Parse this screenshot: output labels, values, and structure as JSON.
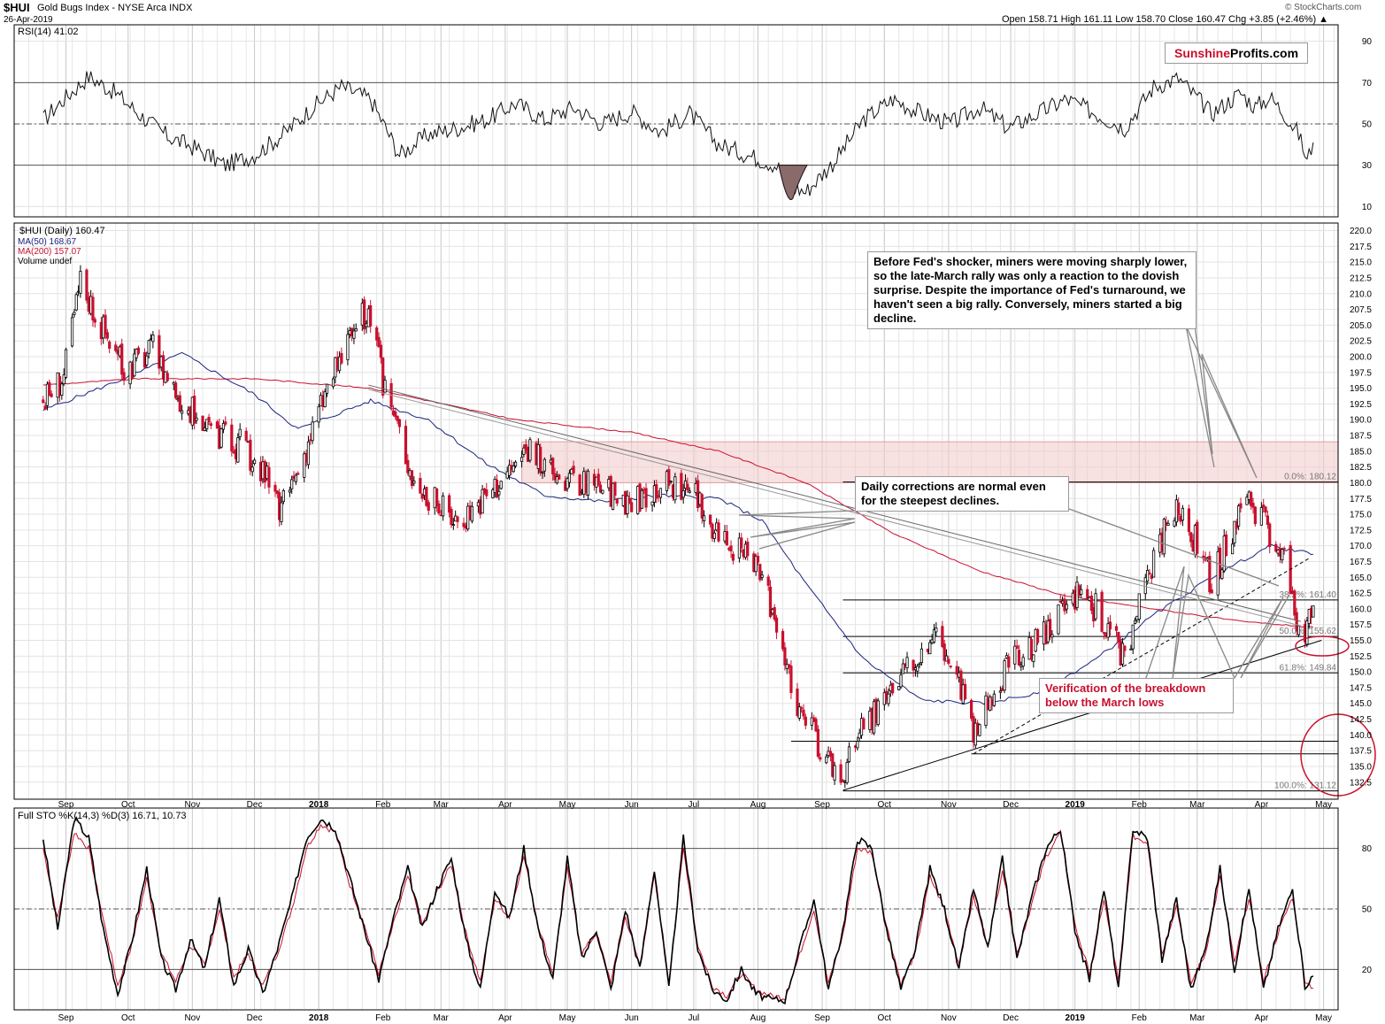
{
  "header": {
    "symbol": "$HUI",
    "name": "Gold Bugs Index - NYSE Arca INDX",
    "date": "26-Apr-2019",
    "quote": "Open 158.71  High 161.11  Low 158.70  Close 160.47  Chg +3.85 (+2.46%) ▲",
    "copyright": "© StockCharts.com"
  },
  "brand": {
    "part1": "Sunshine",
    "part2": "Profits.com"
  },
  "rsi_label": "RSI(14) 41.02",
  "price_legend": [
    "$HUI (Daily) 160.47",
    "MA(50) 168.67",
    "MA(200) 157.07",
    "Volume undef"
  ],
  "sto_label": "Full STO %K(14,3) %D(3) 16.71, 10.73",
  "annotations": {
    "fed_note": "Before Fed's shocker, miners were moving sharply lower, so the late-March rally was only a reaction to the dovish surprise. Despite the importance of Fed's turnaround, we haven't seen a big rally. Conversely, miners started a big decline.",
    "corrections_note": "Daily corrections are normal even for the steepest declines.",
    "verification_note": "Verification of the breakdown below the March lows"
  },
  "colors": {
    "up": "#000000",
    "down": "#c8102e",
    "ma50": "#1a237e",
    "ma200": "#c8102e",
    "zone": "#f3c9c9",
    "brand_red": "#c8102e"
  },
  "chart_data": [
    {
      "type": "line",
      "title": "RSI(14) 41.02",
      "y_ticks": [
        10,
        30,
        50,
        70,
        90
      ],
      "ylim": [
        5,
        98
      ],
      "x": [
        "2017-08-21",
        "2017-08-31",
        "2017-09-12",
        "2017-09-25",
        "2017-10-06",
        "2017-10-20",
        "2017-11-03",
        "2017-11-17",
        "2017-12-01",
        "2017-12-15",
        "2017-12-29",
        "2018-01-12",
        "2018-01-26",
        "2018-02-09",
        "2018-02-23",
        "2018-03-09",
        "2018-03-23",
        "2018-04-06",
        "2018-04-20",
        "2018-05-04",
        "2018-05-18",
        "2018-06-01",
        "2018-06-15",
        "2018-06-29",
        "2018-07-13",
        "2018-07-27",
        "2018-08-10",
        "2018-08-17",
        "2018-08-24",
        "2018-09-07",
        "2018-09-21",
        "2018-10-05",
        "2018-10-19",
        "2018-11-02",
        "2018-11-16",
        "2018-11-30",
        "2018-12-14",
        "2018-12-28",
        "2019-01-11",
        "2019-01-25",
        "2019-02-08",
        "2019-02-20",
        "2019-03-08",
        "2019-03-22",
        "2019-03-29",
        "2019-04-05",
        "2019-04-12",
        "2019-04-19",
        "2019-04-23",
        "2019-04-26"
      ],
      "values": [
        52,
        62,
        73,
        65,
        55,
        44,
        38,
        30,
        35,
        45,
        58,
        68,
        62,
        35,
        45,
        48,
        52,
        60,
        52,
        58,
        50,
        56,
        46,
        55,
        40,
        35,
        30,
        20,
        17,
        32,
        52,
        62,
        55,
        50,
        58,
        48,
        55,
        62,
        55,
        48,
        68,
        72,
        55,
        65,
        58,
        63,
        55,
        45,
        32,
        41
      ]
    },
    {
      "type": "candlestick",
      "title": "$HUI (Daily) 160.47",
      "y_ticks": [
        132.5,
        135.0,
        137.5,
        140.0,
        142.5,
        145.0,
        147.5,
        150.0,
        152.5,
        155.0,
        157.5,
        160.0,
        162.5,
        165.0,
        167.5,
        170.0,
        172.5,
        175.0,
        177.5,
        180.0,
        182.5,
        185.0,
        187.5,
        190.0,
        192.5,
        195.0,
        197.5,
        200.0,
        202.5,
        205.0,
        207.5,
        210.0,
        212.5,
        215.0,
        217.5,
        220.0
      ],
      "ylim": [
        129.8,
        221.2
      ],
      "x_ticks": [
        "Sep",
        "Oct",
        "Nov",
        "Dec",
        "2018",
        "Feb",
        "Mar",
        "Apr",
        "May",
        "Jun",
        "Jul",
        "Aug",
        "Sep",
        "Oct",
        "Nov",
        "Dec",
        "2019",
        "Feb",
        "Mar",
        "Apr",
        "May"
      ],
      "series": [
        {
          "name": "$HUI (Daily) 160.47",
          "x": [
            "2017-08-21",
            "2017-08-31",
            "2017-09-08",
            "2017-09-15",
            "2017-09-29",
            "2017-10-13",
            "2017-10-27",
            "2017-11-10",
            "2017-11-24",
            "2017-12-08",
            "2017-12-13",
            "2017-12-22",
            "2018-01-05",
            "2018-01-19",
            "2018-01-25",
            "2018-02-01",
            "2018-02-09",
            "2018-02-16",
            "2018-03-01",
            "2018-03-09",
            "2018-03-23",
            "2018-04-06",
            "2018-04-13",
            "2018-04-20",
            "2018-05-04",
            "2018-05-18",
            "2018-06-01",
            "2018-06-15",
            "2018-06-29",
            "2018-07-09",
            "2018-07-20",
            "2018-08-03",
            "2018-08-10",
            "2018-08-15",
            "2018-08-17",
            "2018-08-24",
            "2018-08-31",
            "2018-09-11",
            "2018-09-21",
            "2018-10-05",
            "2018-10-12",
            "2018-10-26",
            "2018-11-09",
            "2018-11-13",
            "2018-11-23",
            "2018-12-07",
            "2018-12-21",
            "2019-01-04",
            "2019-01-11",
            "2019-01-25",
            "2019-02-08",
            "2019-02-20",
            "2019-03-01",
            "2019-03-08",
            "2019-03-15",
            "2019-03-22",
            "2019-03-27",
            "2019-04-05",
            "2019-04-12",
            "2019-04-17",
            "2019-04-23",
            "2019-04-26"
          ],
          "close": [
            193,
            197,
            212,
            207,
            198,
            201,
            193,
            188,
            186,
            180,
            175,
            182,
            195,
            205,
            207,
            196,
            188,
            180,
            176,
            174,
            178,
            183,
            186,
            182,
            180,
            179,
            177,
            180,
            179,
            174,
            170,
            165,
            158,
            152,
            146,
            142,
            138,
            133,
            142,
            146,
            150,
            156,
            146,
            139,
            148,
            153,
            157,
            163,
            160,
            152,
            168,
            177,
            170,
            164,
            170,
            176,
            177,
            172,
            168,
            159,
            156,
            160.47
          ]
        },
        {
          "name": "MA(50) 168.67",
          "x": [
            "2017-08-21",
            "2017-09-29",
            "2017-10-27",
            "2017-12-01",
            "2017-12-22",
            "2018-01-26",
            "2018-02-23",
            "2018-03-23",
            "2018-04-20",
            "2018-05-18",
            "2018-06-15",
            "2018-07-13",
            "2018-08-03",
            "2018-08-24",
            "2018-09-21",
            "2018-10-19",
            "2018-11-16",
            "2018-12-14",
            "2019-01-11",
            "2019-02-08",
            "2019-03-08",
            "2019-04-05",
            "2019-04-26"
          ],
          "values": [
            191.5,
            196.5,
            200.5,
            194,
            188.5,
            193,
            190,
            183,
            178,
            177,
            178,
            177.5,
            174,
            164,
            152,
            145.5,
            145,
            146.5,
            152,
            159,
            165,
            170,
            168.67
          ]
        },
        {
          "name": "MA(200) 157.07",
          "x": [
            "2017-08-21",
            "2017-10-06",
            "2017-12-01",
            "2018-01-26",
            "2018-04-06",
            "2018-06-01",
            "2018-07-13",
            "2018-08-24",
            "2018-10-05",
            "2018-11-16",
            "2018-12-28",
            "2019-02-08",
            "2019-03-22",
            "2019-04-26"
          ],
          "values": [
            195.5,
            196.5,
            196.5,
            195,
            190,
            188,
            185,
            180,
            172,
            166,
            162,
            160,
            158,
            157.07
          ]
        }
      ],
      "fibonacci": [
        {
          "label": "0.0%: 180.12",
          "value": 180.12
        },
        {
          "label": "38.2%: 161.40",
          "value": 161.4
        },
        {
          "label": "50.0%: 155.62",
          "value": 155.62
        },
        {
          "label": "61.8%: 149.84",
          "value": 149.84
        },
        {
          "label": "100.0%: 131.12",
          "value": 131.12
        }
      ],
      "horizontal_levels": [
        139.0,
        137.0
      ],
      "resistance_zone": [
        180.0,
        186.5
      ]
    },
    {
      "type": "line",
      "title": "Full STO %K(14,3) %D(3) 16.71, 10.73",
      "y_ticks": [
        20,
        50,
        80
      ],
      "ylim": [
        0,
        100
      ],
      "x": [
        "2017-08-21",
        "2017-08-28",
        "2017-09-05",
        "2017-09-12",
        "2017-09-19",
        "2017-09-26",
        "2017-10-03",
        "2017-10-10",
        "2017-10-17",
        "2017-10-24",
        "2017-10-31",
        "2017-11-07",
        "2017-11-14",
        "2017-11-21",
        "2017-11-28",
        "2017-12-05",
        "2017-12-12",
        "2017-12-19",
        "2017-12-26",
        "2018-01-02",
        "2018-01-09",
        "2018-01-16",
        "2018-01-23",
        "2018-01-30",
        "2018-02-06",
        "2018-02-13",
        "2018-02-20",
        "2018-02-27",
        "2018-03-06",
        "2018-03-13",
        "2018-03-20",
        "2018-03-27",
        "2018-04-03",
        "2018-04-10",
        "2018-04-17",
        "2018-04-24",
        "2018-05-01",
        "2018-05-08",
        "2018-05-15",
        "2018-05-22",
        "2018-05-29",
        "2018-06-05",
        "2018-06-12",
        "2018-06-19",
        "2018-06-26",
        "2018-07-03",
        "2018-07-10",
        "2018-07-17",
        "2018-07-24",
        "2018-07-31",
        "2018-08-07",
        "2018-08-14",
        "2018-08-21",
        "2018-08-28",
        "2018-09-04",
        "2018-09-11",
        "2018-09-18",
        "2018-09-25",
        "2018-10-02",
        "2018-10-09",
        "2018-10-16",
        "2018-10-23",
        "2018-10-30",
        "2018-11-06",
        "2018-11-13",
        "2018-11-20",
        "2018-11-27",
        "2018-12-04",
        "2018-12-11",
        "2018-12-18",
        "2018-12-25",
        "2019-01-01",
        "2019-01-08",
        "2019-01-15",
        "2019-01-22",
        "2019-01-29",
        "2019-02-05",
        "2019-02-12",
        "2019-02-19",
        "2019-02-26",
        "2019-03-05",
        "2019-03-12",
        "2019-03-19",
        "2019-03-26",
        "2019-04-02",
        "2019-04-09",
        "2019-04-16",
        "2019-04-22",
        "2019-04-26"
      ],
      "series": [
        {
          "name": "%K",
          "values": [
            85,
            40,
            95,
            85,
            40,
            8,
            35,
            70,
            25,
            10,
            35,
            20,
            55,
            12,
            30,
            8,
            30,
            55,
            85,
            95,
            90,
            65,
            40,
            15,
            45,
            70,
            40,
            60,
            75,
            35,
            10,
            60,
            45,
            80,
            40,
            15,
            75,
            25,
            40,
            10,
            50,
            20,
            70,
            10,
            85,
            30,
            10,
            5,
            20,
            8,
            5,
            5,
            30,
            55,
            10,
            40,
            85,
            80,
            40,
            10,
            30,
            70,
            50,
            20,
            60,
            30,
            75,
            25,
            55,
            80,
            90,
            40,
            15,
            60,
            10,
            90,
            85,
            25,
            55,
            10,
            30,
            70,
            20,
            60,
            10,
            40,
            60,
            12,
            16.71
          ]
        },
        {
          "name": "%D",
          "values": [
            80,
            45,
            88,
            80,
            45,
            12,
            33,
            65,
            28,
            14,
            32,
            22,
            50,
            16,
            28,
            12,
            28,
            50,
            80,
            92,
            88,
            62,
            42,
            18,
            42,
            66,
            42,
            58,
            72,
            38,
            14,
            55,
            46,
            76,
            42,
            18,
            70,
            28,
            38,
            14,
            46,
            22,
            66,
            14,
            80,
            32,
            12,
            7,
            18,
            10,
            7,
            6,
            27,
            50,
            13,
            37,
            80,
            78,
            42,
            13,
            28,
            66,
            50,
            23,
            56,
            32,
            70,
            28,
            52,
            76,
            88,
            42,
            18,
            55,
            14,
            86,
            83,
            28,
            52,
            13,
            28,
            66,
            23,
            56,
            14,
            38,
            56,
            15,
            10.73
          ]
        }
      ]
    }
  ]
}
